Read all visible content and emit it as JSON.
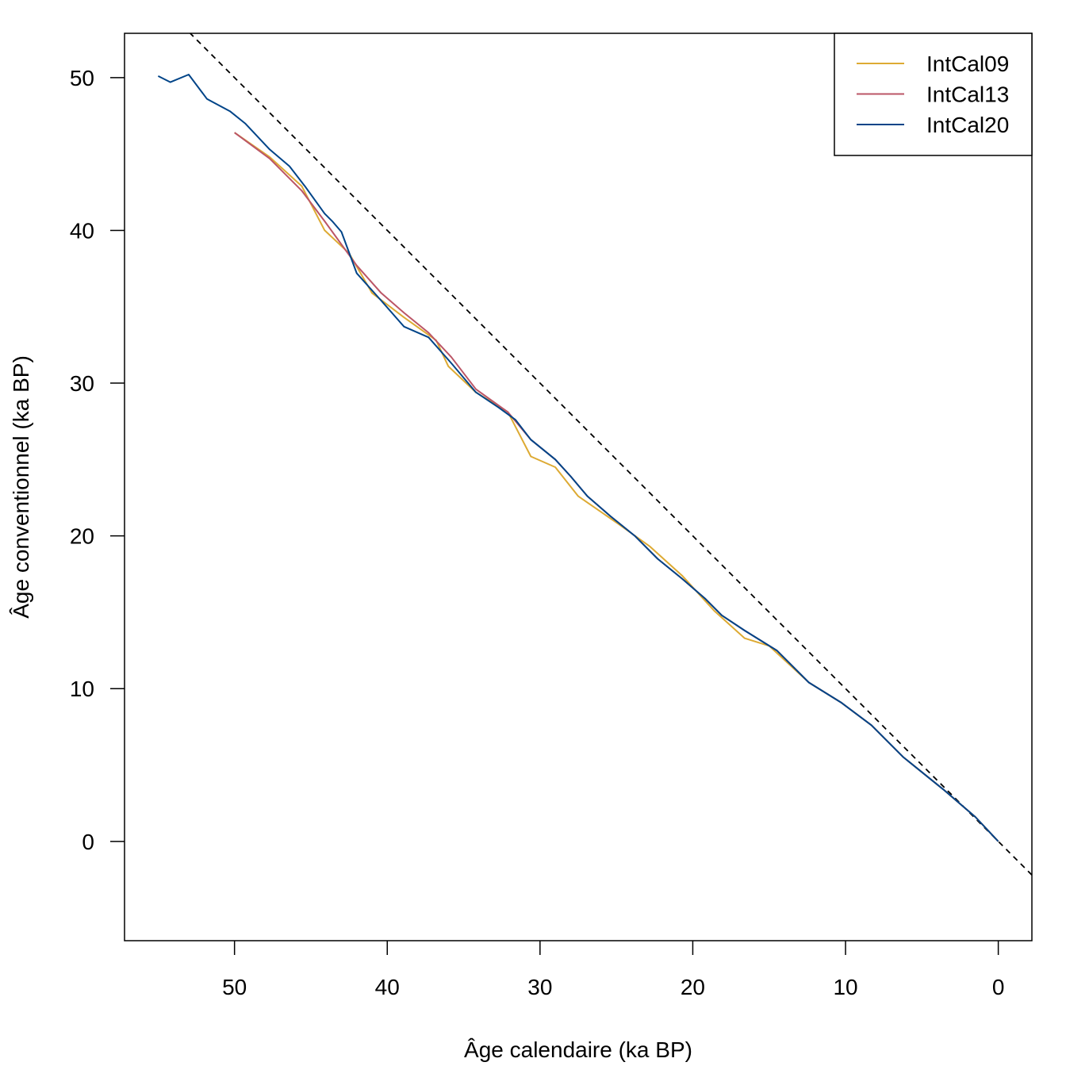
{
  "chart_data": {
    "type": "line",
    "title": "",
    "xlabel": "Âge calendaire (ka BP)",
    "ylabel": "Âge conventionnel (ka BP)",
    "xlim": [
      57.2,
      -2.2
    ],
    "ylim": [
      -6.5,
      52.9
    ],
    "xticks": [
      50,
      40,
      30,
      20,
      10,
      0
    ],
    "yticks": [
      0,
      10,
      20,
      30,
      40,
      50
    ],
    "grid": false,
    "legend_position": "top-right",
    "reference_line": {
      "type": "identity",
      "style": "dashed",
      "color": "#000000"
    },
    "series": [
      {
        "name": "IntCal09",
        "color": "#DDAA33",
        "x": [
          50,
          47.7,
          45.6,
          44.1,
          42.5,
          41.0,
          38.9,
          36.8,
          36.0,
          34.2,
          32.1,
          30.6,
          29.0,
          27.5,
          24.9,
          22.8,
          20.7,
          18.6,
          16.6,
          15.0,
          12.4,
          10.3,
          8.3,
          6.2,
          3.6,
          1.5,
          0
        ],
        "y": [
          46.4,
          44.8,
          42.9,
          40.0,
          38.5,
          35.9,
          34.3,
          32.8,
          31.1,
          29.4,
          28.1,
          25.2,
          24.5,
          22.6,
          20.8,
          19.3,
          17.4,
          15.1,
          13.3,
          12.8,
          10.4,
          9.1,
          7.6,
          5.5,
          3.4,
          1.6,
          0
        ]
      },
      {
        "name": "IntCal13",
        "color": "#BB5566",
        "x": [
          50,
          47.7,
          45.6,
          44.1,
          42.0,
          40.4,
          38.9,
          37.3,
          35.8,
          34.2,
          32.1,
          30.6,
          29.0,
          28.0,
          26.9,
          25.4,
          23.8,
          22.3,
          20.7,
          19.2,
          18.1,
          16.6,
          14.5,
          12.4,
          10.3,
          8.3,
          6.2,
          3.6,
          1.5,
          0
        ],
        "y": [
          46.4,
          44.7,
          42.6,
          40.6,
          37.7,
          35.9,
          34.6,
          33.3,
          31.7,
          29.6,
          28.1,
          26.3,
          25.0,
          23.9,
          22.6,
          21.3,
          20.0,
          18.5,
          17.2,
          15.9,
          14.8,
          13.8,
          12.5,
          10.4,
          9.1,
          7.6,
          5.5,
          3.4,
          1.6,
          0
        ]
      },
      {
        "name": "IntCal20",
        "color": "#004488",
        "x": [
          55.0,
          54.2,
          53.0,
          51.8,
          50.3,
          49.3,
          47.7,
          46.4,
          45.4,
          44.1,
          43.6,
          43.0,
          42.0,
          40.4,
          38.9,
          37.3,
          35.8,
          34.2,
          32.7,
          31.6,
          30.6,
          29.0,
          28.0,
          26.9,
          25.4,
          23.8,
          22.3,
          20.7,
          19.2,
          18.1,
          16.6,
          14.5,
          12.4,
          10.3,
          8.3,
          6.2,
          3.6,
          1.5,
          0
        ],
        "y": [
          50.1,
          49.7,
          50.2,
          48.6,
          47.8,
          47.0,
          45.3,
          44.2,
          42.9,
          41.1,
          40.6,
          39.9,
          37.2,
          35.4,
          33.7,
          33.0,
          31.3,
          29.4,
          28.4,
          27.6,
          26.3,
          25.0,
          23.9,
          22.6,
          21.3,
          20.0,
          18.5,
          17.2,
          15.9,
          14.8,
          13.8,
          12.5,
          10.4,
          9.1,
          7.6,
          5.5,
          3.4,
          1.6,
          0
        ]
      }
    ]
  }
}
